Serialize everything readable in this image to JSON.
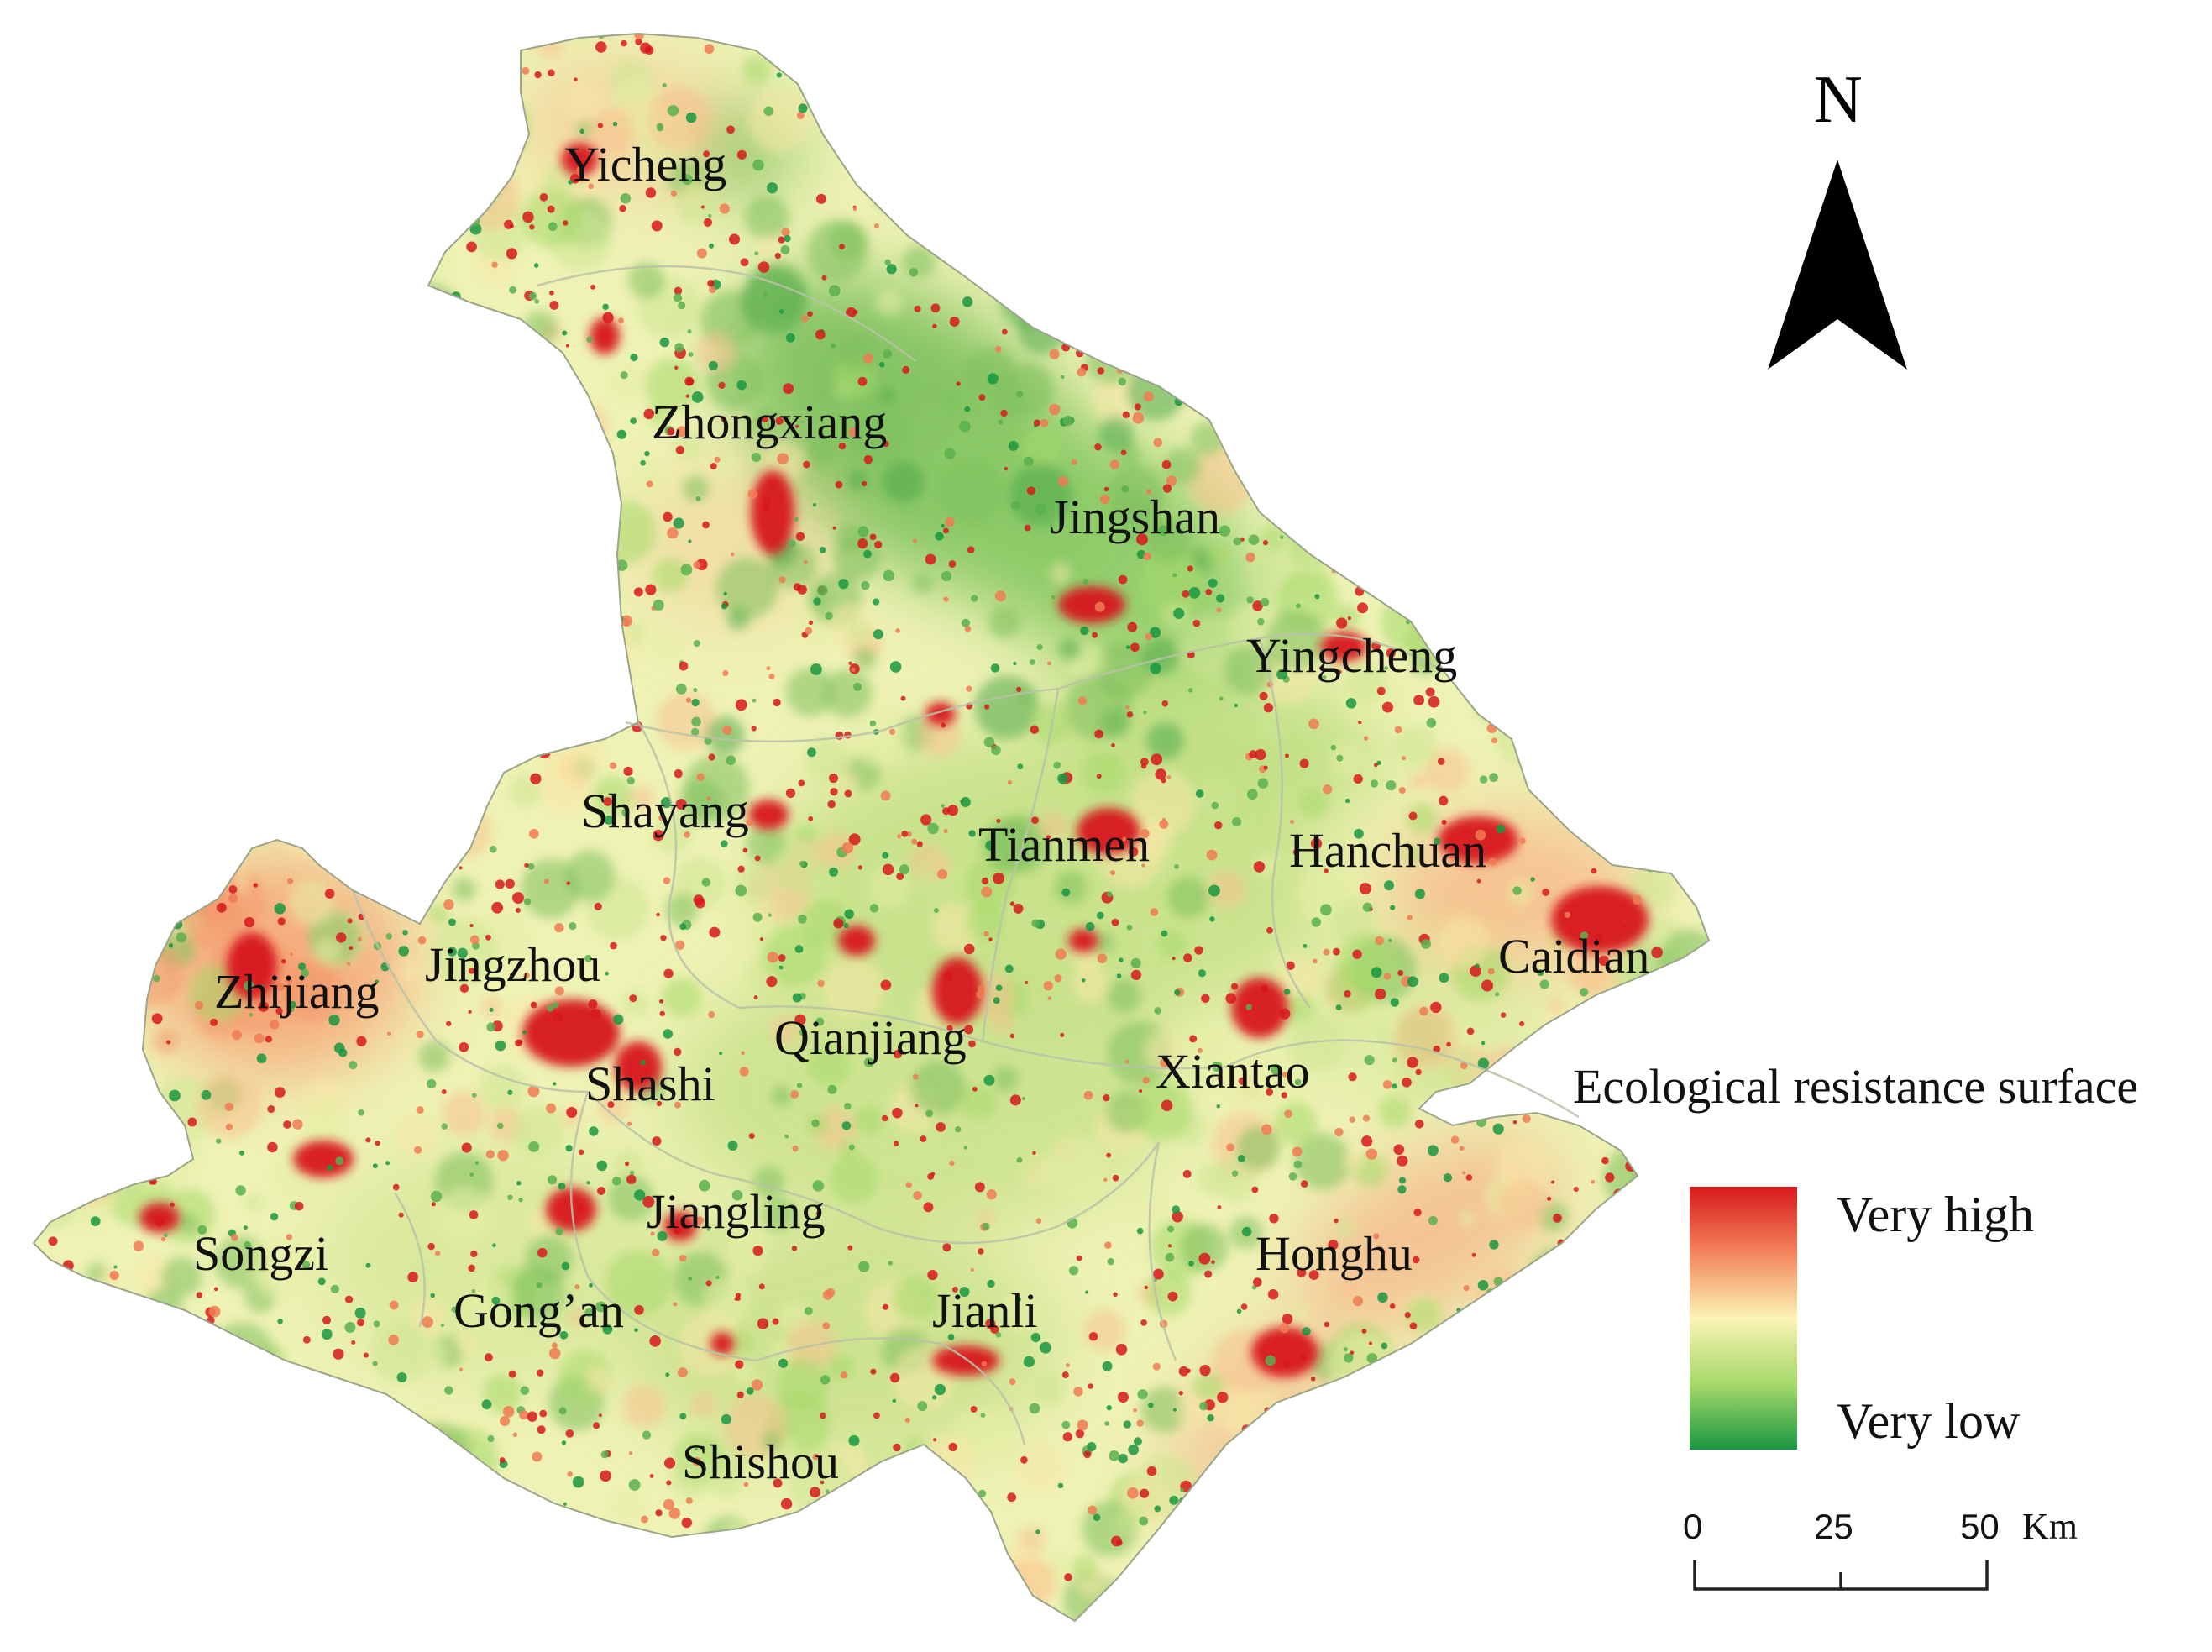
{
  "map": {
    "place_labels": [
      {
        "id": "yicheng",
        "text": "Yicheng"
      },
      {
        "id": "zhongxiang",
        "text": "Zhongxiang"
      },
      {
        "id": "jingshan",
        "text": "Jingshan"
      },
      {
        "id": "yingcheng",
        "text": "Yingcheng"
      },
      {
        "id": "shayang",
        "text": "Shayang"
      },
      {
        "id": "tianmen",
        "text": "Tianmen"
      },
      {
        "id": "hanchuan",
        "text": "Hanchuan"
      },
      {
        "id": "caidian",
        "text": "Caidian"
      },
      {
        "id": "zhijiang",
        "text": "Zhijiang"
      },
      {
        "id": "jingzhou",
        "text": "Jingzhou"
      },
      {
        "id": "qianjiang",
        "text": "Qianjiang"
      },
      {
        "id": "shashi",
        "text": "Shashi"
      },
      {
        "id": "xiantao",
        "text": "Xiantao"
      },
      {
        "id": "jiangling",
        "text": "Jiangling"
      },
      {
        "id": "songzi",
        "text": "Songzi"
      },
      {
        "id": "gongan",
        "text": "Gong’an"
      },
      {
        "id": "jianli",
        "text": "Jianli"
      },
      {
        "id": "honghu",
        "text": "Honghu"
      },
      {
        "id": "shishou",
        "text": "Shishou"
      }
    ],
    "colors": {
      "very_high": "#d7191c",
      "high": "#f4845c",
      "medium": "#fbf3b4",
      "low": "#a6d96a",
      "very_low": "#1a9641"
    }
  },
  "north_arrow": {
    "letter": "N"
  },
  "legend": {
    "title": "Ecological resistance surface",
    "high_label": "Very high",
    "low_label": "Very low"
  },
  "scale_bar": {
    "ticks": [
      "0",
      "25",
      "50"
    ],
    "unit": "Km"
  }
}
